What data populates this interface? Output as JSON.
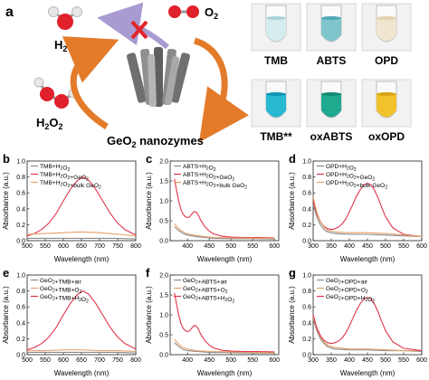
{
  "figure": {
    "top_label": "a",
    "molecules": {
      "water": "H2O",
      "oxygen": "O2",
      "peroxide": "H2O2"
    },
    "center_label": "GeO2 nanozymes",
    "vials": {
      "top": [
        {
          "label": "TMB",
          "liquid": "#d7ecee",
          "tint": "#a9d3dc"
        },
        {
          "label": "ABTS",
          "liquid": "#7fc6cc",
          "tint": "#4fa9b5"
        },
        {
          "label": "OPD",
          "liquid": "#efe6cf",
          "tint": "#e2d3ae"
        }
      ],
      "bottom": [
        {
          "label": "TMB**",
          "liquid": "#27b9d2",
          "tint": "#0e95b4"
        },
        {
          "label": "oxABTS",
          "liquid": "#1fa98f",
          "tint": "#118a72"
        },
        {
          "label": "oxOPD",
          "liquid": "#f1c22c",
          "tint": "#d9a315"
        }
      ]
    }
  },
  "colors": {
    "gray": "#8a8a8a",
    "red": "#e0344a",
    "orange": "#e9a06a",
    "arrow": "#e37b2b",
    "cross": "#e2252b",
    "purple": "#a99bd2"
  },
  "chart_data": [
    {
      "panel": "b",
      "type": "line",
      "xlabel": "Wavelength (nm)",
      "ylabel": "Absorbance (a.u.)",
      "xlim": [
        500,
        800
      ],
      "ylim": [
        0,
        1.0
      ],
      "xticks": [
        500,
        550,
        600,
        650,
        700,
        750,
        800
      ],
      "yticks": [
        0.0,
        0.2,
        0.4,
        0.6,
        0.8,
        1.0
      ],
      "series": [
        {
          "name": "TMB+H2O2",
          "color": "gray",
          "x": [
            500,
            550,
            600,
            650,
            700,
            750,
            800
          ],
          "y": [
            0.03,
            0.03,
            0.03,
            0.03,
            0.03,
            0.03,
            0.02
          ]
        },
        {
          "name": "TMB+H2O2+GeO2",
          "color": "red",
          "x": [
            500,
            520,
            540,
            560,
            580,
            600,
            620,
            640,
            655,
            670,
            690,
            710,
            730,
            750,
            770,
            800
          ],
          "y": [
            0.06,
            0.09,
            0.14,
            0.22,
            0.34,
            0.5,
            0.65,
            0.76,
            0.8,
            0.76,
            0.64,
            0.49,
            0.34,
            0.22,
            0.14,
            0.07
          ]
        },
        {
          "name": "TMB+H2O2+bulk GeO2",
          "color": "orange",
          "x": [
            500,
            550,
            600,
            650,
            700,
            750,
            800
          ],
          "y": [
            0.08,
            0.09,
            0.1,
            0.11,
            0.1,
            0.08,
            0.06
          ]
        }
      ]
    },
    {
      "panel": "c",
      "type": "line",
      "xlabel": "Wavelength (nm)",
      "ylabel": "Absorbance (a.u.)",
      "xlim": [
        360,
        610
      ],
      "ylim": [
        0,
        2.0
      ],
      "xticks": [
        400,
        450,
        500,
        550,
        600
      ],
      "yticks": [
        0.0,
        0.5,
        1.0,
        1.5,
        2.0
      ],
      "series": [
        {
          "name": "ABTS+H2O2",
          "color": "gray",
          "x": [
            370,
            380,
            390,
            400,
            410,
            420,
            440,
            460,
            500,
            550,
            600
          ],
          "y": [
            0.35,
            0.25,
            0.18,
            0.14,
            0.12,
            0.1,
            0.08,
            0.06,
            0.05,
            0.05,
            0.04
          ]
        },
        {
          "name": "ABTS+H2O2+GeO2",
          "color": "red",
          "x": [
            370,
            375,
            380,
            385,
            390,
            395,
            400,
            405,
            410,
            415,
            420,
            425,
            430,
            440,
            450,
            460,
            480,
            500,
            530,
            560,
            600
          ],
          "y": [
            1.55,
            1.25,
            0.98,
            0.78,
            0.66,
            0.6,
            0.58,
            0.6,
            0.67,
            0.73,
            0.72,
            0.64,
            0.52,
            0.35,
            0.24,
            0.17,
            0.11,
            0.09,
            0.08,
            0.08,
            0.07
          ]
        },
        {
          "name": "ABTS+H2O2+bulk GeO2",
          "color": "orange",
          "x": [
            370,
            380,
            390,
            400,
            410,
            420,
            440,
            460,
            500,
            550,
            600
          ],
          "y": [
            0.42,
            0.3,
            0.22,
            0.17,
            0.15,
            0.13,
            0.1,
            0.08,
            0.07,
            0.06,
            0.06
          ]
        }
      ]
    },
    {
      "panel": "d",
      "type": "line",
      "xlabel": "Wavelength (nm)",
      "ylabel": "Absorbance (a.u.)",
      "xlim": [
        300,
        600
      ],
      "ylim": [
        0,
        1.0
      ],
      "xticks": [
        300,
        350,
        400,
        450,
        500,
        550,
        600
      ],
      "yticks": [
        0.0,
        0.2,
        0.4,
        0.6,
        0.8,
        1.0
      ],
      "series": [
        {
          "name": "OPD+H2O2",
          "color": "gray",
          "x": [
            300,
            310,
            320,
            330,
            340,
            360,
            400,
            450,
            500,
            550,
            600
          ],
          "y": [
            0.45,
            0.3,
            0.2,
            0.14,
            0.11,
            0.09,
            0.08,
            0.08,
            0.07,
            0.06,
            0.05
          ]
        },
        {
          "name": "OPD+H2O2+GeO2",
          "color": "red",
          "x": [
            300,
            310,
            320,
            330,
            340,
            350,
            360,
            370,
            380,
            390,
            400,
            410,
            420,
            430,
            440,
            450,
            460,
            470,
            480,
            490,
            500,
            520,
            550,
            600
          ],
          "y": [
            0.5,
            0.34,
            0.24,
            0.18,
            0.15,
            0.14,
            0.15,
            0.17,
            0.21,
            0.27,
            0.36,
            0.46,
            0.56,
            0.64,
            0.7,
            0.72,
            0.7,
            0.63,
            0.53,
            0.41,
            0.3,
            0.16,
            0.08,
            0.05
          ]
        },
        {
          "name": "OPD+H2O2+bulk GeO2",
          "color": "orange",
          "x": [
            300,
            310,
            320,
            330,
            340,
            360,
            400,
            450,
            500,
            550,
            600
          ],
          "y": [
            0.55,
            0.36,
            0.24,
            0.17,
            0.13,
            0.11,
            0.1,
            0.1,
            0.09,
            0.07,
            0.05
          ]
        }
      ]
    },
    {
      "panel": "e",
      "type": "line",
      "xlabel": "Wavelength (nm)",
      "ylabel": "Absorbance (a.u.)",
      "xlim": [
        500,
        800
      ],
      "ylim": [
        0,
        1.0
      ],
      "xticks": [
        500,
        550,
        600,
        650,
        700,
        750,
        800
      ],
      "yticks": [
        0.0,
        0.2,
        0.4,
        0.6,
        0.8,
        1.0
      ],
      "series": [
        {
          "name": "GeO2+TMB+air",
          "color": "gray",
          "x": [
            500,
            550,
            600,
            650,
            700,
            750,
            800
          ],
          "y": [
            0.03,
            0.03,
            0.03,
            0.03,
            0.03,
            0.03,
            0.02
          ]
        },
        {
          "name": "GeO2+TMB+O2",
          "color": "orange",
          "x": [
            500,
            550,
            600,
            650,
            700,
            750,
            800
          ],
          "y": [
            0.05,
            0.05,
            0.06,
            0.06,
            0.05,
            0.05,
            0.04
          ]
        },
        {
          "name": "GeO2+TMB+H2O2",
          "color": "red",
          "x": [
            500,
            520,
            540,
            560,
            580,
            600,
            620,
            640,
            655,
            670,
            690,
            710,
            730,
            750,
            770,
            800
          ],
          "y": [
            0.06,
            0.09,
            0.14,
            0.22,
            0.34,
            0.5,
            0.65,
            0.76,
            0.8,
            0.76,
            0.64,
            0.49,
            0.34,
            0.22,
            0.14,
            0.07
          ]
        }
      ]
    },
    {
      "panel": "f",
      "type": "line",
      "xlabel": "Wavelength (nm)",
      "ylabel": "Absorbance (a.u.)",
      "xlim": [
        360,
        610
      ],
      "ylim": [
        0,
        2.0
      ],
      "xticks": [
        400,
        450,
        500,
        550,
        600
      ],
      "yticks": [
        0.0,
        0.5,
        1.0,
        1.5,
        2.0
      ],
      "series": [
        {
          "name": "GeO2+ABTS+air",
          "color": "gray",
          "x": [
            370,
            380,
            390,
            400,
            420,
            450,
            500,
            550,
            600
          ],
          "y": [
            0.3,
            0.2,
            0.13,
            0.1,
            0.08,
            0.06,
            0.05,
            0.04,
            0.04
          ]
        },
        {
          "name": "GeO2+ABTS+O2",
          "color": "orange",
          "x": [
            370,
            380,
            390,
            400,
            420,
            450,
            500,
            550,
            600
          ],
          "y": [
            0.38,
            0.26,
            0.18,
            0.14,
            0.1,
            0.08,
            0.07,
            0.06,
            0.05
          ]
        },
        {
          "name": "GeO2+ABTS+H2O2",
          "color": "red",
          "x": [
            370,
            375,
            380,
            385,
            390,
            395,
            400,
            405,
            410,
            415,
            420,
            425,
            430,
            440,
            450,
            460,
            480,
            500,
            530,
            560,
            600
          ],
          "y": [
            1.55,
            1.25,
            0.98,
            0.78,
            0.66,
            0.6,
            0.58,
            0.6,
            0.67,
            0.73,
            0.72,
            0.64,
            0.52,
            0.35,
            0.24,
            0.17,
            0.11,
            0.09,
            0.08,
            0.08,
            0.07
          ]
        }
      ]
    },
    {
      "panel": "g",
      "type": "line",
      "xlabel": "Wavelength (nm)",
      "ylabel": "Absorbance (a.u.)",
      "xlim": [
        300,
        600
      ],
      "ylim": [
        0,
        1.0
      ],
      "xticks": [
        300,
        350,
        400,
        450,
        500,
        550,
        600
      ],
      "yticks": [
        0.0,
        0.2,
        0.4,
        0.6,
        0.8,
        1.0
      ],
      "series": [
        {
          "name": "GeO2+OPD+air",
          "color": "gray",
          "x": [
            300,
            310,
            320,
            330,
            340,
            360,
            400,
            450,
            500,
            550,
            600
          ],
          "y": [
            0.45,
            0.3,
            0.2,
            0.14,
            0.1,
            0.07,
            0.06,
            0.06,
            0.05,
            0.05,
            0.04
          ]
        },
        {
          "name": "GeO2+OPD+O2",
          "color": "orange",
          "x": [
            300,
            310,
            320,
            330,
            340,
            360,
            400,
            450,
            500,
            550,
            600
          ],
          "y": [
            0.48,
            0.32,
            0.22,
            0.16,
            0.12,
            0.09,
            0.07,
            0.07,
            0.06,
            0.05,
            0.05
          ]
        },
        {
          "name": "GeO2+OPD+H2O2",
          "color": "red",
          "x": [
            300,
            310,
            320,
            330,
            340,
            350,
            360,
            370,
            380,
            390,
            400,
            410,
            420,
            430,
            440,
            450,
            460,
            470,
            480,
            490,
            500,
            520,
            550,
            600
          ],
          "y": [
            0.5,
            0.34,
            0.24,
            0.18,
            0.15,
            0.14,
            0.15,
            0.17,
            0.21,
            0.27,
            0.36,
            0.46,
            0.56,
            0.64,
            0.7,
            0.72,
            0.7,
            0.63,
            0.53,
            0.41,
            0.3,
            0.16,
            0.08,
            0.05
          ]
        }
      ]
    }
  ]
}
